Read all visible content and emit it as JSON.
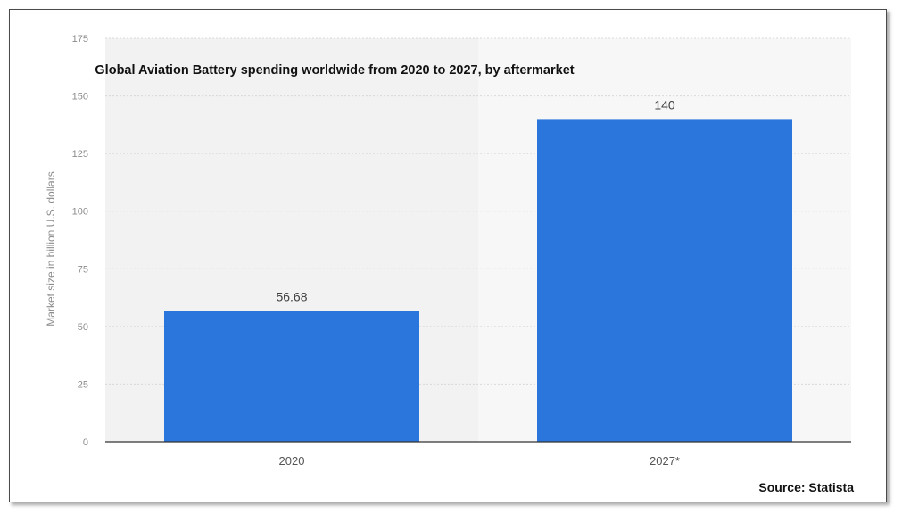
{
  "chart_data": {
    "type": "bar",
    "title": "Global Aviation Battery spending worldwide from 2020 to 2027, by aftermarket",
    "xlabel": "",
    "ylabel": "Market size in billion U.S. dollars",
    "categories": [
      "2020",
      "2027*"
    ],
    "values": [
      56.68,
      140
    ],
    "data_labels": [
      "56.68",
      "140"
    ],
    "ylim": [
      0,
      175
    ],
    "yticks": [
      0,
      25,
      50,
      75,
      100,
      125,
      150,
      175
    ],
    "grid": true,
    "legend": "none",
    "bar_color": "#2a76dd",
    "source": "Source: Statista"
  }
}
